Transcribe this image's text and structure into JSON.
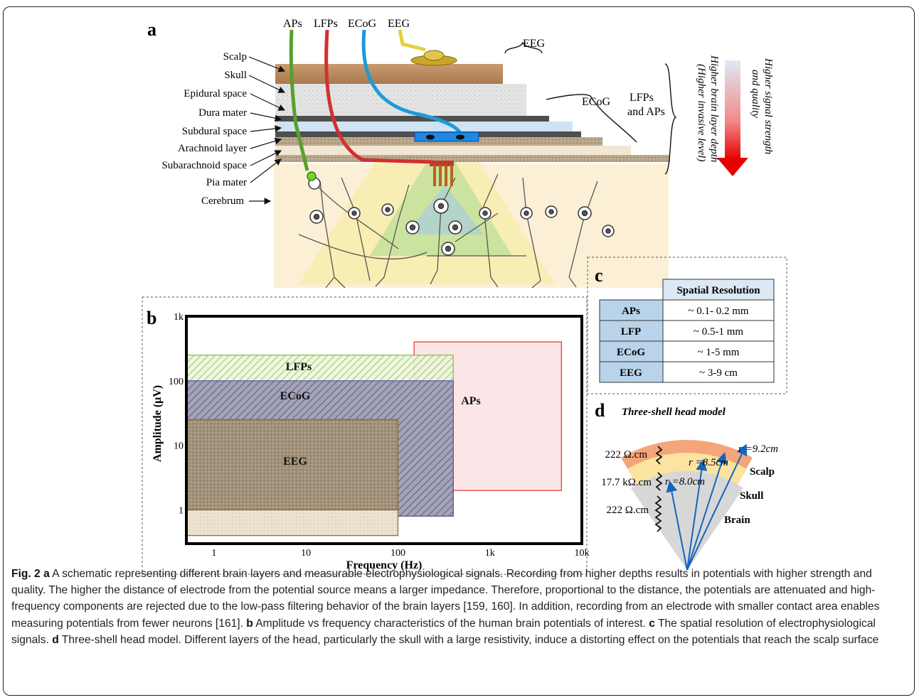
{
  "panel_a": {
    "label": "a",
    "electrodes": [
      "APs",
      "LFPs",
      "ECoG",
      "EEG"
    ],
    "layers": [
      "Scalp",
      "Skull",
      "Epidural space",
      "Dura mater",
      "Subdural space",
      "Arachnoid layer",
      "Subarachnoid space",
      "Pia mater",
      "Cerebrum"
    ],
    "brace_labels": {
      "eeg": "EEG",
      "ecog": "ECoG",
      "lfp_line1": "LFPs",
      "lfp_line2": "and APs"
    },
    "arrow_text": {
      "signal_line1": "Higher signal strength",
      "signal_line2": "and quality",
      "depth_line1": "Higher brain layer depth",
      "depth_line2": "(Higher invasive level)"
    }
  },
  "panel_b": {
    "label": "b",
    "chart_data": {
      "type": "area",
      "xlabel": "Frequency (Hz)",
      "ylabel": "Amplitude (μV)",
      "x_scale": "log",
      "y_scale": "log",
      "xlim": [
        0.5,
        10000
      ],
      "ylim": [
        0.3,
        1000
      ],
      "x_ticks": [
        "1",
        "10",
        "100",
        "1k",
        "10k"
      ],
      "y_ticks": [
        "1k",
        "100",
        "10",
        "1"
      ],
      "series": [
        {
          "name": "LFPs",
          "x_range": [
            0.5,
            400
          ],
          "y_range": [
            0.8,
            250
          ],
          "color": "#8bc34a"
        },
        {
          "name": "ECoG",
          "x_range": [
            0.5,
            400
          ],
          "y_range": [
            0.8,
            100
          ],
          "color": "#5d5aa0"
        },
        {
          "name": "EEG",
          "x_range": [
            0.5,
            100
          ],
          "y_range": [
            0.4,
            25
          ],
          "color": "#8b6b3a"
        },
        {
          "name": "APs",
          "x_range": [
            150,
            6000
          ],
          "y_range": [
            2,
            400
          ],
          "color": "#e53935"
        }
      ]
    }
  },
  "panel_c": {
    "label": "c",
    "header": "Spatial Resolution",
    "rows": [
      {
        "signal": "APs",
        "resolution": "~ 0.1- 0.2 mm"
      },
      {
        "signal": "LFP",
        "resolution": "~ 0.5-1 mm"
      },
      {
        "signal": "ECoG",
        "resolution": "~ 1-5 mm"
      },
      {
        "signal": "EEG",
        "resolution": "~ 3-9 cm"
      }
    ]
  },
  "panel_d": {
    "label": "d",
    "title": "Three-shell head model",
    "layers": [
      "Scalp",
      "Skull",
      "Brain"
    ],
    "radii": [
      "r =9.2cm",
      "r =8.5cm",
      "r =8.0cm"
    ],
    "resistivities": [
      "222 Ω.cm",
      "17.7 kΩ.cm",
      "222 Ω.cm"
    ]
  },
  "caption": {
    "fig_label": "Fig. 2",
    "a_label": "a",
    "a_text": " A schematic representing different brain layers and measurable electrophysiological signals. Recording from higher depths results in potentials with higher strength and quality. The higher the distance of electrode from the potential source means a larger impedance. Therefore, proportional to the distance, the potentials are attenuated and high-frequency components are rejected due to the low-pass filtering behavior of the brain layers [159, 160]. In addition, recording from an electrode with smaller contact area enables measuring potentials from fewer neurons [161]. ",
    "b_label": "b",
    "b_text": " Amplitude vs frequency characteristics of the human brain potentials of interest. ",
    "c_label": "c",
    "c_text": " The spatial resolution of electrophysiological signals. ",
    "d_label": "d",
    "d_text": " Three-shell head model. Different layers of the head, particularly the skull with a large resistivity, induce a distorting effect on the potentials that reach the scalp surface"
  }
}
